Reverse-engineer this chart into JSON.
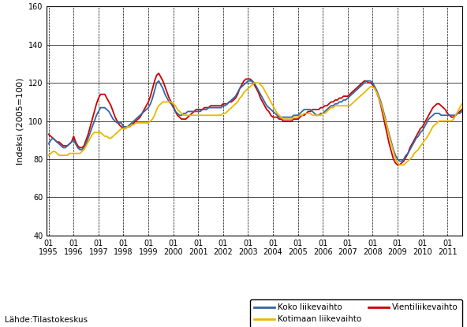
{
  "ylabel": "Indeksi (2005=100)",
  "source_label": "Lähde:Tilastokeskus",
  "ylim": [
    40,
    160
  ],
  "yticks": [
    40,
    60,
    80,
    100,
    120,
    140,
    160
  ],
  "line_koko": {
    "color": "#3465a4",
    "label": "Koko liikevaihto",
    "linewidth": 1.3
  },
  "line_kotimaan": {
    "color": "#e8b800",
    "label": "Kotimaan liikevaihto",
    "linewidth": 1.3
  },
  "line_vienti": {
    "color": "#cc0000",
    "label": "Vientiliikevaihto",
    "linewidth": 1.3
  },
  "koko": [
    88,
    90,
    91,
    90,
    89,
    88,
    87,
    86,
    86,
    87,
    88,
    89,
    90,
    88,
    86,
    85,
    85,
    86,
    88,
    91,
    94,
    97,
    100,
    103,
    105,
    107,
    107,
    107,
    106,
    105,
    103,
    101,
    100,
    99,
    99,
    99,
    97,
    97,
    97,
    98,
    99,
    100,
    101,
    102,
    103,
    104,
    105,
    106,
    107,
    109,
    112,
    116,
    120,
    121,
    119,
    117,
    114,
    112,
    110,
    109,
    107,
    105,
    104,
    103,
    103,
    104,
    104,
    105,
    105,
    105,
    105,
    105,
    105,
    105,
    106,
    106,
    106,
    107,
    107,
    107,
    107,
    107,
    107,
    107,
    108,
    108,
    109,
    110,
    111,
    112,
    113,
    115,
    117,
    118,
    119,
    120,
    121,
    121,
    121,
    120,
    118,
    116,
    114,
    112,
    110,
    108,
    107,
    106,
    105,
    104,
    103,
    102,
    102,
    102,
    102,
    102,
    102,
    102,
    103,
    103,
    103,
    104,
    105,
    106,
    106,
    106,
    106,
    105,
    104,
    103,
    103,
    104,
    104,
    105,
    106,
    107,
    108,
    108,
    109,
    109,
    110,
    110,
    111,
    111,
    112,
    113,
    114,
    115,
    116,
    117,
    118,
    119,
    120,
    121,
    121,
    121,
    120,
    118,
    116,
    113,
    110,
    106,
    102,
    97,
    93,
    89,
    85,
    82,
    80,
    79,
    79,
    80,
    82,
    83,
    85,
    87,
    89,
    91,
    92,
    94,
    95,
    97,
    99,
    101,
    102,
    103,
    104,
    104,
    104,
    103,
    103,
    103,
    103,
    103,
    103,
    103,
    103,
    104,
    104,
    105,
    106,
    107,
    108,
    109
  ],
  "kotimaan": [
    82,
    83,
    84,
    84,
    83,
    82,
    82,
    82,
    82,
    82,
    83,
    83,
    83,
    83,
    83,
    83,
    84,
    85,
    87,
    89,
    91,
    93,
    94,
    94,
    94,
    94,
    93,
    92,
    92,
    91,
    91,
    92,
    93,
    94,
    95,
    96,
    96,
    96,
    97,
    97,
    98,
    98,
    99,
    99,
    99,
    99,
    99,
    99,
    99,
    100,
    101,
    103,
    106,
    108,
    109,
    110,
    110,
    110,
    110,
    110,
    109,
    108,
    106,
    105,
    104,
    103,
    103,
    103,
    103,
    103,
    103,
    103,
    103,
    103,
    103,
    103,
    103,
    103,
    103,
    103,
    103,
    103,
    103,
    103,
    104,
    104,
    105,
    106,
    107,
    108,
    109,
    110,
    112,
    113,
    115,
    116,
    117,
    118,
    119,
    120,
    120,
    120,
    119,
    118,
    116,
    114,
    112,
    110,
    108,
    106,
    104,
    103,
    102,
    101,
    101,
    101,
    101,
    101,
    102,
    102,
    102,
    103,
    103,
    104,
    104,
    104,
    104,
    103,
    103,
    103,
    103,
    103,
    104,
    104,
    105,
    106,
    107,
    107,
    108,
    108,
    108,
    108,
    108,
    108,
    108,
    108,
    109,
    110,
    111,
    112,
    113,
    114,
    115,
    116,
    117,
    118,
    118,
    117,
    115,
    112,
    109,
    105,
    101,
    97,
    92,
    88,
    84,
    80,
    78,
    77,
    77,
    77,
    78,
    79,
    80,
    81,
    83,
    84,
    85,
    87,
    88,
    90,
    91,
    93,
    95,
    97,
    98,
    99,
    100,
    100,
    100,
    100,
    100,
    100,
    100,
    101,
    103,
    105,
    107,
    109,
    110,
    111,
    111,
    111
  ],
  "vienti": [
    93,
    92,
    91,
    90,
    89,
    89,
    88,
    87,
    87,
    87,
    88,
    89,
    92,
    89,
    87,
    86,
    86,
    87,
    90,
    93,
    97,
    101,
    105,
    109,
    112,
    114,
    114,
    114,
    112,
    110,
    108,
    105,
    102,
    100,
    98,
    97,
    96,
    96,
    97,
    97,
    98,
    99,
    100,
    101,
    102,
    104,
    106,
    108,
    110,
    113,
    117,
    121,
    124,
    125,
    123,
    121,
    118,
    115,
    112,
    110,
    108,
    105,
    103,
    102,
    101,
    101,
    101,
    102,
    103,
    104,
    105,
    106,
    106,
    106,
    106,
    107,
    107,
    107,
    108,
    108,
    108,
    108,
    108,
    108,
    109,
    109,
    109,
    110,
    110,
    111,
    112,
    114,
    117,
    119,
    121,
    122,
    122,
    122,
    121,
    119,
    117,
    115,
    112,
    110,
    108,
    106,
    105,
    103,
    102,
    102,
    102,
    101,
    101,
    100,
    100,
    100,
    100,
    100,
    101,
    101,
    101,
    102,
    103,
    103,
    104,
    105,
    105,
    106,
    106,
    106,
    106,
    107,
    107,
    108,
    108,
    109,
    110,
    110,
    111,
    111,
    112,
    112,
    113,
    113,
    113,
    114,
    115,
    116,
    117,
    118,
    119,
    120,
    121,
    121,
    120,
    120,
    119,
    117,
    115,
    112,
    108,
    103,
    98,
    93,
    88,
    84,
    80,
    78,
    77,
    77,
    78,
    79,
    81,
    83,
    86,
    88,
    90,
    92,
    94,
    96,
    97,
    99,
    101,
    103,
    105,
    107,
    108,
    109,
    109,
    108,
    107,
    106,
    104,
    103,
    102,
    102,
    103,
    104,
    105,
    106,
    107,
    108,
    109,
    110
  ],
  "xtick_years": [
    1995,
    1996,
    1997,
    1998,
    1999,
    2000,
    2001,
    2002,
    2003,
    2004,
    2005,
    2006,
    2007,
    2008,
    2009,
    2010,
    2011
  ]
}
